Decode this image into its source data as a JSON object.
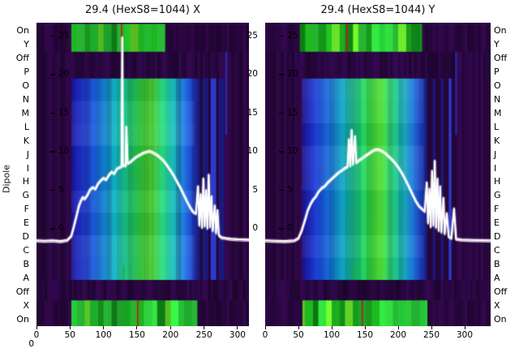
{
  "titles": {
    "left": "29.4 (HexS8=1044) X",
    "right": "29.4 (HexS8=1044) Y"
  },
  "axes": {
    "dipole_label": "Dipole",
    "category_labels_left": [
      "On",
      "Y",
      "Off",
      "P",
      "O",
      "N",
      "M",
      "L",
      "K",
      "J",
      "I",
      "H",
      "G",
      "F",
      "E",
      "D",
      "C",
      "B",
      "A",
      "Off",
      "X",
      "On"
    ],
    "category_labels_right": [
      "On",
      "Y",
      "Off",
      "P",
      "O",
      "N",
      "M",
      "L",
      "K",
      "J",
      "I",
      "H",
      "G",
      "F",
      "E",
      "D",
      "C",
      "B",
      "A",
      "Off",
      "X",
      "On"
    ],
    "y_tick_values": [
      25,
      20,
      15,
      10,
      5,
      0
    ],
    "y_tick_labels": [
      "25",
      "20",
      "15",
      "10",
      "5",
      "0"
    ],
    "gutter_tick_labels": [
      "25",
      "20",
      "15",
      "10",
      "5",
      "0"
    ],
    "x_tick_values": [
      0,
      50,
      100,
      150,
      200,
      250,
      300
    ],
    "x_tick_labels": [
      "0",
      "50",
      "100",
      "150",
      "200",
      "250",
      "300"
    ],
    "corner_label": "0"
  },
  "palette": {
    "purple_bg": "#2a0740",
    "dark_band": "#2a0742",
    "stripe_navy": "#1a1a7c",
    "stripe_purple": "#270638",
    "stripe_bright": "#2a3cd2",
    "curve": "#ffffff",
    "title_text": "#111111",
    "tick_text": "#000000",
    "body_ramp": [
      [
        0.0,
        "#1a1596"
      ],
      [
        0.1,
        "#1e3bd2"
      ],
      [
        0.22,
        "#1673dc"
      ],
      [
        0.33,
        "#0fa8c0"
      ],
      [
        0.45,
        "#18c878"
      ],
      [
        0.55,
        "#2fd23c"
      ],
      [
        0.63,
        "#52da30"
      ],
      [
        0.72,
        "#27cc6e"
      ],
      [
        0.82,
        "#17b4b8"
      ],
      [
        0.92,
        "#1e64d8"
      ],
      [
        1.0,
        "#1c2cae"
      ]
    ],
    "strip_greens": [
      "#1ca81e",
      "#2fd23c",
      "#66dc28",
      "#22bb33",
      "#118a18"
    ]
  },
  "chart_data": [
    {
      "type": "heatmap",
      "title": "29.4 (HexS8=1044) X",
      "x_ticks": [
        0,
        50,
        100,
        150,
        200,
        250,
        300
      ],
      "y_ticks": [
        0,
        5,
        10,
        15,
        20,
        25
      ],
      "x_max": 317,
      "bright": [
        52,
        236
      ],
      "stripes": [
        236,
        280
      ],
      "bands": [
        {
          "profile": "strip",
          "y0": 0.004,
          "y1": 0.096,
          "bright": [
            52,
            188
          ]
        },
        {
          "profile": "dark",
          "y0": 0.096,
          "y1": 0.184
        },
        {
          "profile": "body",
          "y0": 0.184,
          "y1": 0.848
        },
        {
          "profile": "dark",
          "y0": 0.848,
          "y1": 0.915
        },
        {
          "profile": "strip",
          "y0": 0.915,
          "y1": 1.0,
          "bright": [
            52,
            238
          ]
        }
      ],
      "markers": [
        {
          "x": 127,
          "band": [
            0.004,
            0.096
          ],
          "color": "#cc1414"
        },
        {
          "x": 151,
          "band": [
            0.915,
            1.0
          ],
          "color": "#cc1414"
        },
        {
          "x": 130,
          "band": [
            0.8,
            0.848
          ],
          "color": "#18b818"
        },
        {
          "x": 283,
          "band": [
            0.096,
            0.37
          ],
          "color": "#2438c8"
        }
      ],
      "curve": [
        [
          0,
          -1.5
        ],
        [
          12,
          -1.55
        ],
        [
          24,
          -1.5
        ],
        [
          36,
          -1.6
        ],
        [
          46,
          -1.45
        ],
        [
          52,
          -0.9
        ],
        [
          56,
          0.4
        ],
        [
          60,
          1.8
        ],
        [
          63,
          2.9
        ],
        [
          66,
          3.6
        ],
        [
          69,
          4.1
        ],
        [
          72,
          3.9
        ],
        [
          76,
          4.4
        ],
        [
          80,
          5.1
        ],
        [
          84,
          5.4
        ],
        [
          88,
          5.2
        ],
        [
          92,
          5.9
        ],
        [
          96,
          6.3
        ],
        [
          100,
          6.6
        ],
        [
          104,
          6.4
        ],
        [
          108,
          7.0
        ],
        [
          112,
          7.4
        ],
        [
          116,
          7.2
        ],
        [
          120,
          7.8
        ],
        [
          124,
          8.0
        ],
        [
          127,
          8.1
        ],
        [
          128,
          24.8
        ],
        [
          129,
          8.2
        ],
        [
          131,
          8.3
        ],
        [
          133,
          8.2
        ],
        [
          134,
          13.2
        ],
        [
          136,
          8.5
        ],
        [
          140,
          8.7
        ],
        [
          144,
          9.0
        ],
        [
          148,
          9.3
        ],
        [
          152,
          9.5
        ],
        [
          156,
          9.7
        ],
        [
          160,
          9.9
        ],
        [
          164,
          10.0
        ],
        [
          168,
          10.1
        ],
        [
          172,
          10.0
        ],
        [
          176,
          9.8
        ],
        [
          180,
          9.6
        ],
        [
          184,
          9.3
        ],
        [
          188,
          9.0
        ],
        [
          192,
          8.6
        ],
        [
          196,
          8.1
        ],
        [
          200,
          7.6
        ],
        [
          205,
          6.9
        ],
        [
          210,
          6.1
        ],
        [
          215,
          5.3
        ],
        [
          220,
          4.4
        ],
        [
          225,
          3.5
        ],
        [
          230,
          2.7
        ],
        [
          234,
          2.2
        ],
        [
          238,
          2.0
        ],
        [
          241,
          5.5
        ],
        [
          243,
          0.5
        ],
        [
          245,
          4.5
        ],
        [
          247,
          0.2
        ],
        [
          249,
          6.5
        ],
        [
          251,
          0.4
        ],
        [
          253,
          5.0
        ],
        [
          255,
          0.1
        ],
        [
          257,
          7.0
        ],
        [
          259,
          0.3
        ],
        [
          261,
          4.2
        ],
        [
          263,
          -0.2
        ],
        [
          266,
          3.0
        ],
        [
          268,
          -0.5
        ],
        [
          270,
          2.4
        ],
        [
          272,
          -0.8
        ],
        [
          276,
          -1.1
        ],
        [
          282,
          -1.2
        ],
        [
          290,
          -1.3
        ],
        [
          300,
          -1.35
        ],
        [
          317,
          -1.4
        ]
      ]
    },
    {
      "type": "heatmap",
      "title": "29.4 (HexS8=1044) Y",
      "x_ticks": [
        0,
        50,
        100,
        150,
        200,
        250,
        300
      ],
      "y_ticks": [
        0,
        5,
        10,
        15,
        20,
        25
      ],
      "x_max": 339,
      "bright": [
        55,
        238
      ],
      "stripes": [
        238,
        282
      ],
      "bands": [
        {
          "profile": "strip",
          "y0": 0.004,
          "y1": 0.096,
          "bright": [
            52,
            233
          ]
        },
        {
          "profile": "dark",
          "y0": 0.096,
          "y1": 0.184
        },
        {
          "profile": "body",
          "y0": 0.184,
          "y1": 0.848
        },
        {
          "profile": "dark",
          "y0": 0.848,
          "y1": 0.915
        },
        {
          "profile": "strip",
          "y0": 0.915,
          "y1": 1.0,
          "bright": [
            55,
            240
          ]
        }
      ],
      "markers": [
        {
          "x": 123,
          "band": [
            0.004,
            0.096
          ],
          "color": "#cc1414"
        },
        {
          "x": 146,
          "band": [
            0.915,
            1.0
          ],
          "color": "#cc1414"
        },
        {
          "x": 135,
          "band": [
            0.8,
            0.848
          ],
          "color": "#18b818"
        },
        {
          "x": 287,
          "band": [
            0.096,
            0.37
          ],
          "color": "#2438c8"
        }
      ],
      "curve": [
        [
          0,
          -1.5
        ],
        [
          15,
          -1.55
        ],
        [
          30,
          -1.6
        ],
        [
          44,
          -1.5
        ],
        [
          50,
          -1.2
        ],
        [
          55,
          -0.2
        ],
        [
          60,
          1.2
        ],
        [
          64,
          2.4
        ],
        [
          68,
          3.2
        ],
        [
          72,
          3.8
        ],
        [
          76,
          4.2
        ],
        [
          80,
          4.8
        ],
        [
          85,
          5.3
        ],
        [
          90,
          5.6
        ],
        [
          95,
          6.1
        ],
        [
          100,
          6.5
        ],
        [
          105,
          6.9
        ],
        [
          110,
          7.3
        ],
        [
          115,
          7.6
        ],
        [
          120,
          7.9
        ],
        [
          124,
          8.1
        ],
        [
          126,
          11.6
        ],
        [
          128,
          8.2
        ],
        [
          130,
          12.8
        ],
        [
          132,
          8.4
        ],
        [
          135,
          12.0
        ],
        [
          137,
          8.6
        ],
        [
          141,
          8.9
        ],
        [
          146,
          9.2
        ],
        [
          151,
          9.5
        ],
        [
          156,
          9.8
        ],
        [
          161,
          10.1
        ],
        [
          166,
          10.3
        ],
        [
          171,
          10.3
        ],
        [
          176,
          10.1
        ],
        [
          181,
          9.8
        ],
        [
          186,
          9.4
        ],
        [
          191,
          9.0
        ],
        [
          196,
          8.5
        ],
        [
          201,
          7.9
        ],
        [
          206,
          7.2
        ],
        [
          211,
          6.4
        ],
        [
          216,
          5.5
        ],
        [
          221,
          4.6
        ],
        [
          226,
          3.7
        ],
        [
          231,
          3.0
        ],
        [
          236,
          2.6
        ],
        [
          240,
          2.3
        ],
        [
          243,
          6.0
        ],
        [
          245,
          0.8
        ],
        [
          247,
          5.2
        ],
        [
          249,
          0.3
        ],
        [
          251,
          7.5
        ],
        [
          253,
          0.5
        ],
        [
          255,
          8.8
        ],
        [
          257,
          0.2
        ],
        [
          259,
          6.5
        ],
        [
          261,
          -0.2
        ],
        [
          263,
          5.5
        ],
        [
          265,
          -0.4
        ],
        [
          268,
          4.0
        ],
        [
          270,
          -0.6
        ],
        [
          273,
          2.0
        ],
        [
          276,
          -1.0
        ],
        [
          280,
          -1.2
        ],
        [
          284,
          2.6
        ],
        [
          287,
          -1.3
        ],
        [
          295,
          -1.4
        ],
        [
          310,
          -1.45
        ],
        [
          339,
          -1.5
        ]
      ]
    }
  ]
}
